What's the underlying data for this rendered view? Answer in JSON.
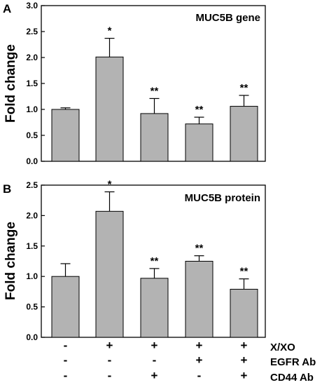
{
  "chart_data": [
    {
      "type": "bar",
      "panel": "A",
      "title": "MUC5B gene",
      "ylabel": "Fold change",
      "ylim": [
        0,
        3.0
      ],
      "yticks": [
        "0.0",
        "0.5",
        "1.0",
        "1.5",
        "2.0",
        "2.5",
        "3.0"
      ],
      "values": [
        1.0,
        2.01,
        0.92,
        0.72,
        1.06
      ],
      "errors": [
        0.03,
        0.36,
        0.29,
        0.13,
        0.21
      ],
      "significance": [
        "",
        "*",
        "**",
        "**",
        "**"
      ],
      "bar_color": "#b3b3b3"
    },
    {
      "type": "bar",
      "panel": "B",
      "title": "MUC5B protein",
      "ylabel": "Fold change",
      "ylim": [
        0,
        2.5
      ],
      "yticks": [
        "0.0",
        "0.5",
        "1.0",
        "1.5",
        "2.0",
        "2.5"
      ],
      "values": [
        1.0,
        2.07,
        0.97,
        1.25,
        0.79
      ],
      "errors": [
        0.21,
        0.32,
        0.16,
        0.09,
        0.17
      ],
      "significance": [
        "",
        "*",
        "**",
        "**",
        "**"
      ],
      "bar_color": "#b3b3b3"
    }
  ],
  "conditions": {
    "rows": [
      {
        "label": "X/XO",
        "values": [
          "-",
          "+",
          "+",
          "+",
          "+"
        ]
      },
      {
        "label": "EGFR Ab",
        "values": [
          "-",
          "-",
          "-",
          "+",
          "+"
        ]
      },
      {
        "label": "CD44 Ab",
        "values": [
          "-",
          "-",
          "+",
          "-",
          "+"
        ]
      }
    ]
  }
}
